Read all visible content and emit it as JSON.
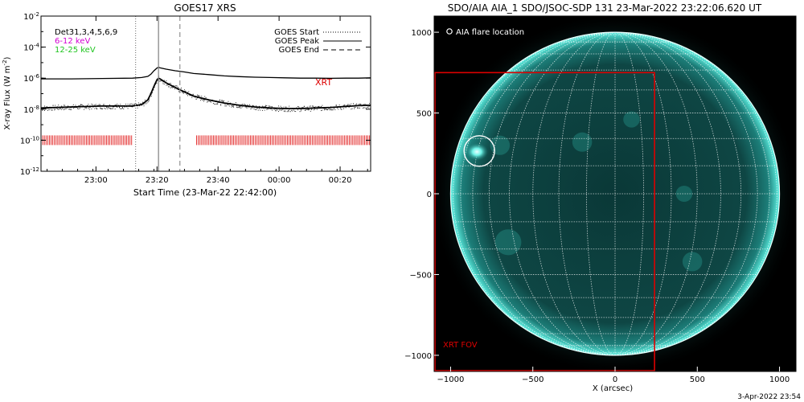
{
  "chart_data": [
    {
      "type": "line",
      "title": "GOES17 XRS",
      "xlabel": "Start Time (23-Mar-22 22:42:00)",
      "ylabel": "X-ray Flux (W m⁻²)",
      "yscale": "log",
      "ylim": [
        1e-12,
        0.01
      ],
      "y_ticks": [
        {
          "exp": "-2",
          "value": 0.01
        },
        {
          "exp": "-4",
          "value": 0.0001
        },
        {
          "exp": "-6",
          "value": 1e-06
        },
        {
          "exp": "-8",
          "value": 1e-08
        },
        {
          "exp": "-10",
          "value": 1e-10
        },
        {
          "exp": "-12",
          "value": 1e-12
        }
      ],
      "x_ticks": [
        "23:00",
        "23:20",
        "23:40",
        "00:00",
        "00:20"
      ],
      "x_tick_minutes": [
        18,
        38,
        58,
        78,
        98
      ],
      "xlim_minutes": [
        0,
        108
      ],
      "legend_left": [
        "Det31,3,4,5,6,9",
        "6-12 keV",
        "12-25 keV"
      ],
      "legend_right": [
        "GOES Start",
        "GOES Peak",
        "GOES End"
      ],
      "annotation": "XRT",
      "goes_start_minute": 31,
      "goes_peak_minute": 38.5,
      "goes_end_minute": 45.5,
      "series": [
        {
          "name": "6-12 keV",
          "x": [
            0,
            10,
            20,
            30,
            33,
            35,
            36,
            37,
            38,
            38.5,
            39,
            41,
            44,
            47,
            50,
            55,
            60,
            65,
            70,
            75,
            80,
            85,
            90,
            95,
            100,
            104,
            108
          ],
          "y": [
            9e-07,
            9e-07,
            9.5e-07,
            1e-06,
            1.1e-06,
            1.3e-06,
            1.8e-06,
            3e-06,
            4.5e-06,
            5e-06,
            4.6e-06,
            3.8e-06,
            3e-06,
            2.5e-06,
            2e-06,
            1.7e-06,
            1.4e-06,
            1.25e-06,
            1.15e-06,
            1.1e-06,
            1.05e-06,
            1e-06,
            1e-06,
            9.8e-07,
            1e-06,
            1e-06,
            1.05e-06
          ]
        },
        {
          "name": "12-25 keV",
          "x": [
            0,
            10,
            20,
            30,
            33,
            35,
            36,
            37,
            38,
            38.5,
            39,
            41,
            44,
            47,
            50,
            55,
            60,
            65,
            70,
            75,
            80,
            85,
            90,
            95,
            100,
            104,
            108
          ],
          "y": [
            1.2e-08,
            1.4e-08,
            1.6e-08,
            1.6e-08,
            2e-08,
            4e-08,
            1e-07,
            3e-07,
            8e-07,
            1e-06,
            9e-07,
            5e-07,
            2.5e-07,
            1.3e-07,
            7e-08,
            4e-08,
            2.5e-08,
            1.8e-08,
            1.4e-08,
            1.2e-08,
            1.1e-08,
            1.1e-08,
            1.2e-08,
            1.3e-08,
            1.5e-08,
            1.7e-08,
            1.8e-08
          ]
        }
      ],
      "xrt_coverage_minutes": [
        [
          0,
          30
        ],
        [
          51,
          108
        ]
      ],
      "xrt_marker_level": 1e-10
    },
    {
      "type": "image",
      "title": "SDO/AIA AIA_1 SDO/JSOC-SDP 131 23-Mar-2022 23:22:06.620 UT",
      "xlabel": "X (arcsec)",
      "ylabel": "",
      "xlim": [
        -1100,
        1100
      ],
      "ylim": [
        -1100,
        1100
      ],
      "x_ticks": [
        -1000,
        -500,
        0,
        500,
        1000
      ],
      "y_ticks": [
        1000,
        500,
        0,
        -500,
        -1000
      ],
      "legend": "AIA flare location",
      "flare_location_arcsec": [
        -840,
        260
      ],
      "solar_radius_arcsec": 1000,
      "xrt_fov": {
        "label": "XRT FOV",
        "x_range": [
          -1100,
          240
        ],
        "y_range": [
          -1100,
          750
        ]
      },
      "footer": "3-Apr-2022 23:54"
    }
  ],
  "colors": {
    "background": "#ffffff",
    "curve": "#000000",
    "xrt_marks": "#dd0000",
    "fov_box": "#dd0000",
    "legend_6_12": "#d400d4",
    "legend_12_25": "#1ec41e",
    "sun_disk": "#0c3d3c",
    "sun_limb": "#3fe0d4"
  }
}
